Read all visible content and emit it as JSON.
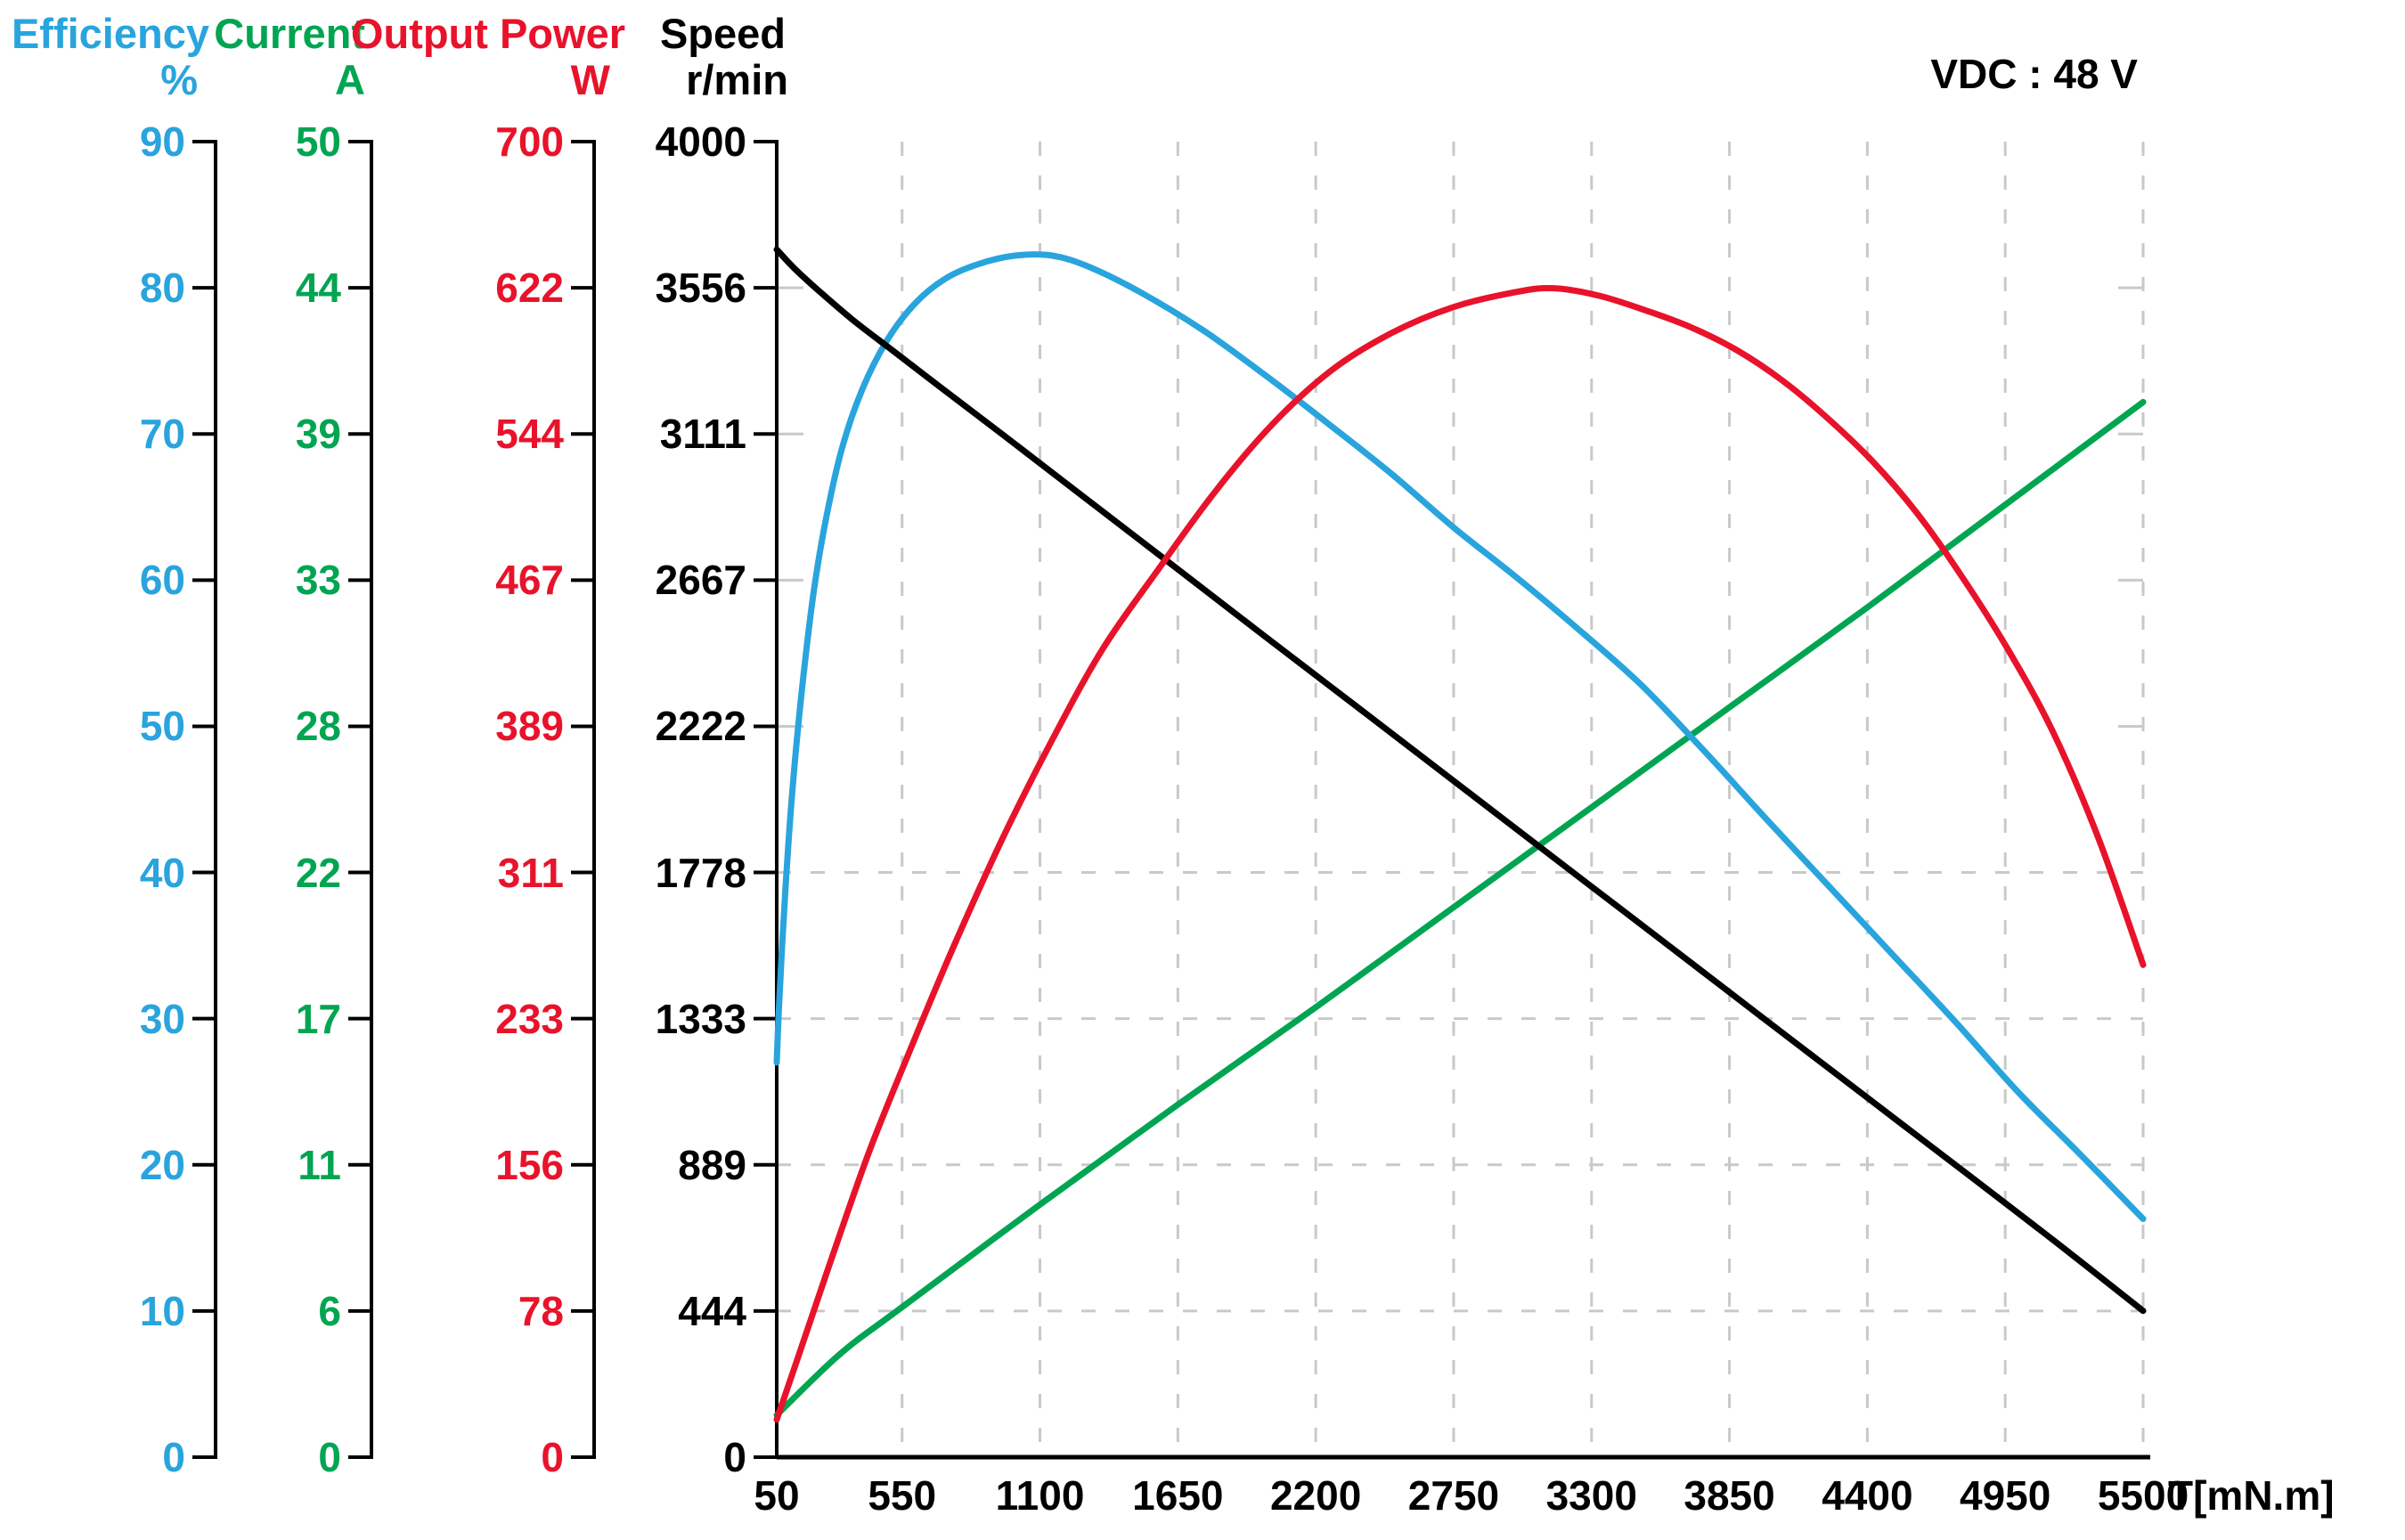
{
  "chart_data": {
    "type": "line",
    "annotation": "VDC : 48 V",
    "x_axis": {
      "title": "T[mN.m]",
      "min": 50,
      "max": 5500,
      "tick_values": [
        50,
        550,
        1100,
        1650,
        2200,
        2750,
        3300,
        3850,
        4400,
        4950,
        5500
      ],
      "tick_labels": [
        "50",
        "550",
        "1100",
        "1650",
        "2200",
        "2750",
        "3300",
        "3850",
        "4400",
        "4950",
        "5500"
      ]
    },
    "y_axes": [
      {
        "id": "efficiency",
        "name": "Efficiency",
        "unit": "%",
        "color": "#29A4DD",
        "min": 0,
        "max": 90,
        "tick_labels": [
          "90",
          "80",
          "70",
          "60",
          "50",
          "40",
          "30",
          "20",
          "10",
          "0"
        ]
      },
      {
        "id": "current",
        "name": "Current",
        "unit": "A",
        "color": "#00A551",
        "min": 0,
        "max": 50,
        "tick_labels": [
          "50",
          "44",
          "39",
          "33",
          "28",
          "22",
          "17",
          "11",
          "6",
          "0"
        ]
      },
      {
        "id": "output_power",
        "name": "Output Power",
        "unit": "W",
        "color": "#E8132B",
        "min": 0,
        "max": 700,
        "tick_labels": [
          "700",
          "622",
          "544",
          "467",
          "389",
          "311",
          "233",
          "156",
          "78",
          "0"
        ]
      },
      {
        "id": "speed",
        "name": "Speed",
        "unit": "r/min",
        "color": "#000000",
        "min": 0,
        "max": 4000,
        "tick_labels": [
          "4000",
          "3556",
          "3111",
          "2667",
          "2222",
          "1778",
          "1333",
          "889",
          "444",
          "0"
        ]
      }
    ],
    "series": [
      {
        "name": "Efficiency",
        "axis": "efficiency",
        "color": "#29A4DD",
        "points": [
          [
            50,
            27
          ],
          [
            58,
            30.5
          ],
          [
            70,
            34.5
          ],
          [
            85,
            39
          ],
          [
            105,
            44
          ],
          [
            130,
            49
          ],
          [
            160,
            54
          ],
          [
            200,
            59.5
          ],
          [
            250,
            64.5
          ],
          [
            310,
            69
          ],
          [
            390,
            73
          ],
          [
            490,
            76.4
          ],
          [
            600,
            78.9
          ],
          [
            720,
            80.6
          ],
          [
            850,
            81.6
          ],
          [
            1000,
            82.2
          ],
          [
            1150,
            82.2
          ],
          [
            1300,
            81.4
          ],
          [
            1500,
            79.7
          ],
          [
            1750,
            77.1
          ],
          [
            2000,
            74
          ],
          [
            2250,
            70.7
          ],
          [
            2500,
            67.3
          ],
          [
            2750,
            63.6
          ],
          [
            3000,
            60.2
          ],
          [
            3250,
            56.6
          ],
          [
            3500,
            52.8
          ],
          [
            3750,
            48.3
          ],
          [
            4000,
            43.6
          ],
          [
            4250,
            39
          ],
          [
            4500,
            34.4
          ],
          [
            4750,
            29.8
          ],
          [
            5000,
            25
          ],
          [
            5250,
            20.7
          ],
          [
            5500,
            16.3
          ]
        ]
      },
      {
        "name": "Current",
        "axis": "current",
        "color": "#00A551",
        "points": [
          [
            50,
            1.6
          ],
          [
            300,
            3.9
          ],
          [
            550,
            5.7
          ],
          [
            1100,
            9.6
          ],
          [
            1650,
            13.4
          ],
          [
            2200,
            17.1
          ],
          [
            2750,
            20.9
          ],
          [
            3300,
            24.7
          ],
          [
            3850,
            28.5
          ],
          [
            4400,
            32.3
          ],
          [
            4950,
            36.2
          ],
          [
            5500,
            40.1
          ]
        ]
      },
      {
        "name": "Output Power",
        "axis": "output_power",
        "color": "#E8132B",
        "points": [
          [
            50,
            20
          ],
          [
            150,
            59
          ],
          [
            280,
            110
          ],
          [
            420,
            163
          ],
          [
            580,
            216
          ],
          [
            750,
            270
          ],
          [
            950,
            329
          ],
          [
            1150,
            382
          ],
          [
            1350,
            430
          ],
          [
            1570,
            472
          ],
          [
            1800,
            514
          ],
          [
            2030,
            550
          ],
          [
            2260,
            578
          ],
          [
            2500,
            598
          ],
          [
            2750,
            612
          ],
          [
            3000,
            620
          ],
          [
            3150,
            622
          ],
          [
            3330,
            618
          ],
          [
            3520,
            610
          ],
          [
            3700,
            601
          ],
          [
            3880,
            589
          ],
          [
            4060,
            573
          ],
          [
            4240,
            553
          ],
          [
            4420,
            530
          ],
          [
            4600,
            502
          ],
          [
            4780,
            468
          ],
          [
            4960,
            430
          ],
          [
            5140,
            386
          ],
          [
            5320,
            330
          ],
          [
            5500,
            262
          ]
        ]
      },
      {
        "name": "Speed",
        "axis": "speed",
        "color": "#000000",
        "points": [
          [
            50,
            3672
          ],
          [
            120,
            3615
          ],
          [
            220,
            3545
          ],
          [
            350,
            3460
          ],
          [
            500,
            3372
          ],
          [
            700,
            3255
          ],
          [
            950,
            3110
          ],
          [
            1250,
            2934
          ],
          [
            1600,
            2729
          ],
          [
            2000,
            2494
          ],
          [
            2400,
            2261
          ],
          [
            2800,
            2027
          ],
          [
            3200,
            1793
          ],
          [
            3600,
            1560
          ],
          [
            4000,
            1326
          ],
          [
            4400,
            1093
          ],
          [
            4800,
            860
          ],
          [
            5150,
            655
          ],
          [
            5500,
            445
          ]
        ]
      }
    ],
    "grid": {
      "style": "dashed",
      "color": "#C9C9C9",
      "vertical_torque": [
        550,
        1100,
        1650,
        2200,
        2750,
        3300,
        3850,
        4400,
        4950,
        5500
      ],
      "horizontal_speed_full": [
        444.4,
        888.9,
        1333.3,
        1777.8
      ],
      "horizontal_speed_stubs": [
        2222.2,
        2666.7,
        3111.1,
        3555.6
      ]
    }
  }
}
